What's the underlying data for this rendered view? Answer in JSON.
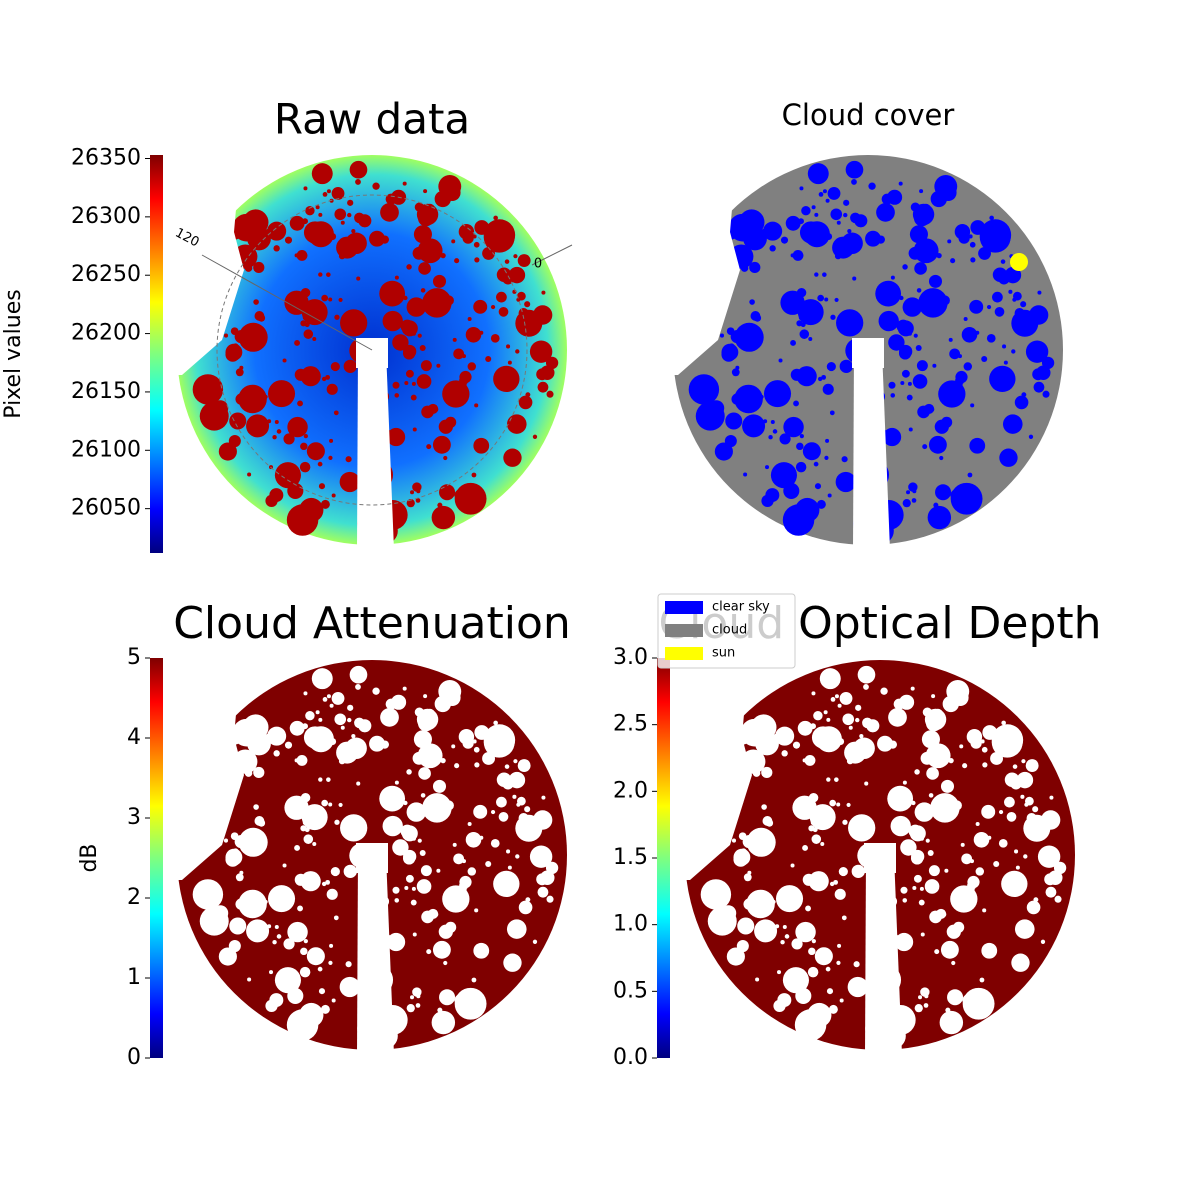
{
  "chart_data": [
    {
      "type": "image",
      "title": "Raw data",
      "colorbar_label": "Pixel values",
      "colormap": "jet",
      "clim": [
        26012,
        26353
      ],
      "cticks": [
        26050,
        26100,
        26150,
        26200,
        26250,
        26300,
        26350
      ],
      "annotations": [
        "120",
        "0"
      ]
    },
    {
      "type": "image",
      "title": "Cloud cover",
      "series": [
        {
          "name": "clear sky",
          "color": "#0000ff"
        },
        {
          "name": "cloud",
          "color": "#808080"
        },
        {
          "name": "sun",
          "color": "#ffff00"
        }
      ]
    },
    {
      "type": "image",
      "title": "Cloud Attenuation",
      "colorbar_label": "dB",
      "colormap": "jet",
      "clim": [
        0,
        5
      ],
      "cticks": [
        0,
        1,
        2,
        3,
        4,
        5
      ]
    },
    {
      "type": "image",
      "title": "Cloud Optical Depth",
      "colormap": "jet",
      "clim": [
        0,
        3
      ],
      "cticks": [
        {
          "value": 0,
          "label": "0.0"
        },
        0.5,
        {
          "value": 1,
          "label": "1.0"
        },
        1.5,
        {
          "value": 2,
          "label": "2.0"
        },
        2.5,
        {
          "value": 3,
          "label": "3.0"
        }
      ]
    }
  ]
}
